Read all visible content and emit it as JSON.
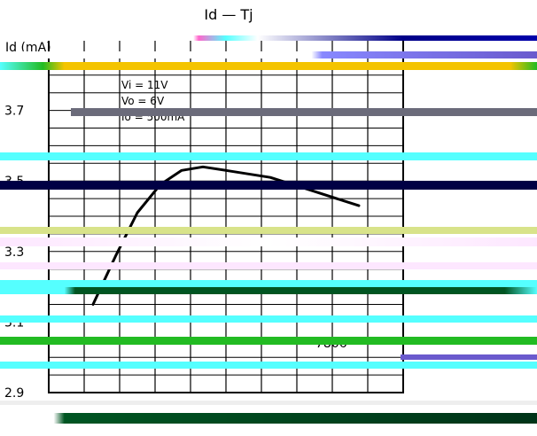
{
  "chart_data": {
    "type": "line",
    "title": "Id — Tj",
    "ylabel": "Id (mA)",
    "xlabel": "",
    "ylim": [
      2.9,
      3.9
    ],
    "xlim": [
      -75,
      125
    ],
    "y_ticks": [
      "2.9",
      "3.1",
      "3.3",
      "3.5",
      "3.7"
    ],
    "x_ticks": [],
    "grid": true,
    "annotations": {
      "conditions": [
        "Vi = 11V",
        "Vo = 6V",
        "Io = 500mA"
      ],
      "device": "7806"
    },
    "series": [
      {
        "name": "",
        "x": [
          -50,
          -37,
          -25,
          -12,
          0,
          12,
          25,
          50,
          75,
          100
        ],
        "y": [
          3.15,
          3.29,
          3.41,
          3.49,
          3.53,
          3.54,
          3.53,
          3.51,
          3.47,
          3.43
        ]
      }
    ]
  },
  "colors": {
    "line": "#000000",
    "grid": "#000000",
    "glitch_cyan": "#55ffff",
    "glitch_green": "#22bb22",
    "glitch_navy": "#000044",
    "glitch_yellow": "#f4c400",
    "glitch_olive": "#d8e38a",
    "glitch_dark_green": "#005522",
    "glitch_purple": "#6a5acd"
  }
}
